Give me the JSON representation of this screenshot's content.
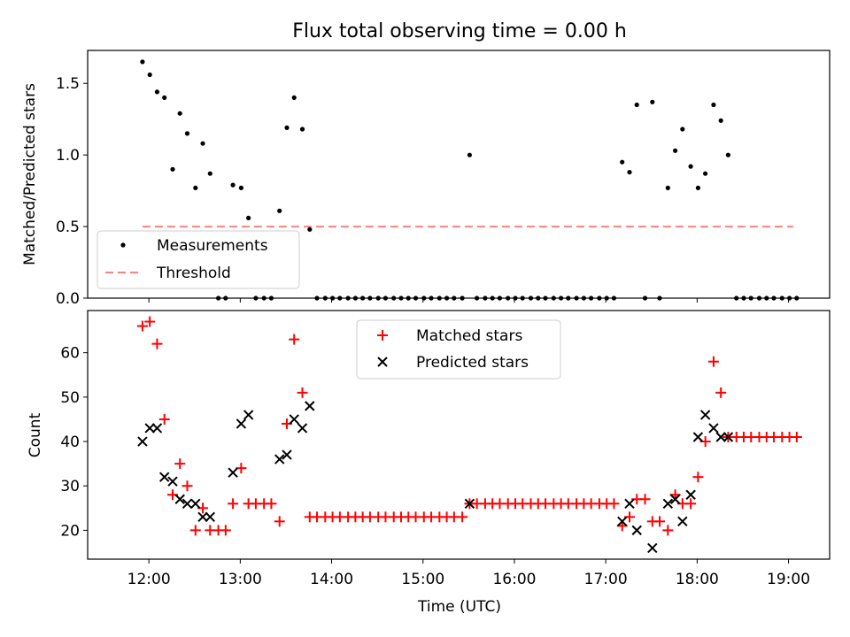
{
  "figure_title": "Flux total observing time = 0.00 h",
  "x_tick_labels": [
    "12:00",
    "13:00",
    "14:00",
    "15:00",
    "16:00",
    "17:00",
    "18:00",
    "19:00"
  ],
  "colors": {
    "measurements": "#000000",
    "threshold": "#ff8080",
    "matched": "#ff0000",
    "predicted": "#000000"
  },
  "chart_data": [
    {
      "type": "scatter",
      "title": "Flux total observing time = 0.00 h",
      "xlabel": "",
      "ylabel": "Matched/Predicted stars",
      "x_unit": "hours UTC",
      "xlim": [
        11.33,
        19.45
      ],
      "ylim": [
        0,
        1.73
      ],
      "yticks": [
        0.0,
        0.5,
        1.0,
        1.5
      ],
      "ytick_labels": [
        "0.0",
        "0.5",
        "1.0",
        "1.5"
      ],
      "legend_position": "lower-left",
      "legend": [
        {
          "label": "Measurements",
          "marker": "dot",
          "color": "#000000"
        },
        {
          "label": "Threshold",
          "marker": "dashed-line",
          "color": "#ff8080"
        }
      ],
      "threshold": {
        "value": 0.5,
        "x_range": [
          11.93,
          19.05
        ]
      },
      "series": [
        {
          "name": "Measurements",
          "x": [
            11.93,
            12.01,
            12.09,
            12.17,
            12.26,
            12.34,
            12.42,
            12.51,
            12.59,
            12.67,
            12.76,
            12.84,
            12.92,
            13.01,
            13.09,
            13.17,
            13.26,
            13.34,
            13.43,
            13.51,
            13.59,
            13.68,
            13.76,
            13.84,
            13.93,
            14.01,
            14.09,
            14.18,
            14.26,
            14.34,
            14.42,
            14.51,
            14.59,
            14.68,
            14.76,
            14.84,
            14.92,
            15.01,
            15.09,
            15.18,
            15.26,
            15.34,
            15.43,
            15.51,
            15.59,
            15.68,
            15.76,
            15.84,
            15.93,
            16.01,
            16.09,
            16.18,
            16.26,
            16.34,
            16.43,
            16.51,
            16.59,
            16.68,
            16.76,
            16.84,
            16.93,
            17.01,
            17.09,
            17.18,
            17.26,
            17.34,
            17.43,
            17.51,
            17.59,
            17.68,
            17.76,
            17.84,
            17.93,
            18.01,
            18.09,
            18.18,
            18.26,
            18.34,
            18.43,
            18.51,
            18.59,
            18.68,
            18.76,
            18.84,
            18.93,
            19.01,
            19.09
          ],
          "y": [
            1.65,
            1.56,
            1.44,
            1.4,
            0.9,
            1.29,
            1.15,
            0.77,
            1.08,
            0.87,
            0.0,
            0.0,
            0.79,
            0.77,
            0.56,
            0.0,
            0.0,
            0.0,
            0.61,
            1.19,
            1.4,
            1.18,
            0.48,
            0.0,
            0.0,
            0.0,
            0.0,
            0.0,
            0.0,
            0.0,
            0.0,
            0.0,
            0.0,
            0.0,
            0.0,
            0.0,
            0.0,
            0.0,
            0.0,
            0.0,
            0.0,
            0.0,
            0.0,
            1.0,
            0.0,
            0.0,
            0.0,
            0.0,
            0.0,
            0.0,
            0.0,
            0.0,
            0.0,
            0.0,
            0.0,
            0.0,
            0.0,
            0.0,
            0.0,
            0.0,
            0.0,
            0.0,
            0.0,
            0.95,
            0.88,
            1.35,
            0.0,
            1.37,
            0.0,
            0.77,
            1.03,
            1.18,
            0.92,
            0.77,
            0.87,
            1.35,
            1.24,
            1.0,
            0.0,
            0.0,
            0.0,
            0.0,
            0.0,
            0.0,
            0.0,
            0.0,
            0.0
          ]
        }
      ]
    },
    {
      "type": "scatter",
      "title": "",
      "xlabel": "Time (UTC)",
      "ylabel": "Count",
      "x_unit": "hours UTC",
      "xlim": [
        11.33,
        19.45
      ],
      "ylim": [
        13.5,
        69.5
      ],
      "yticks": [
        20,
        30,
        40,
        50,
        60
      ],
      "ytick_labels": [
        "20",
        "30",
        "40",
        "50",
        "60"
      ],
      "xticks": [
        12,
        13,
        14,
        15,
        16,
        17,
        18,
        19
      ],
      "legend_position": "top-center",
      "legend": [
        {
          "label": "Matched stars",
          "marker": "plus",
          "color": "#ff0000"
        },
        {
          "label": "Predicted stars",
          "marker": "x",
          "color": "#000000"
        }
      ],
      "series": [
        {
          "name": "Matched stars",
          "x": [
            11.93,
            12.01,
            12.09,
            12.17,
            12.26,
            12.34,
            12.42,
            12.51,
            12.59,
            12.67,
            12.76,
            12.84,
            12.92,
            13.01,
            13.09,
            13.17,
            13.26,
            13.34,
            13.43,
            13.51,
            13.59,
            13.68,
            13.76,
            13.84,
            13.93,
            14.01,
            14.09,
            14.18,
            14.26,
            14.34,
            14.42,
            14.51,
            14.59,
            14.68,
            14.76,
            14.84,
            14.92,
            15.01,
            15.09,
            15.18,
            15.26,
            15.34,
            15.43,
            15.51,
            15.59,
            15.68,
            15.76,
            15.84,
            15.93,
            16.01,
            16.09,
            16.18,
            16.26,
            16.34,
            16.43,
            16.51,
            16.59,
            16.68,
            16.76,
            16.84,
            16.93,
            17.01,
            17.09,
            17.18,
            17.26,
            17.34,
            17.43,
            17.51,
            17.59,
            17.68,
            17.76,
            17.84,
            17.93,
            18.01,
            18.09,
            18.18,
            18.26,
            18.34,
            18.43,
            18.51,
            18.59,
            18.68,
            18.76,
            18.84,
            18.93,
            19.01,
            19.09
          ],
          "y": [
            66,
            67,
            62,
            45,
            28,
            35,
            30,
            20,
            25,
            20,
            20,
            20,
            26,
            34,
            26,
            26,
            26,
            26,
            22,
            44,
            63,
            51,
            23,
            23,
            23,
            23,
            23,
            23,
            23,
            23,
            23,
            23,
            23,
            23,
            23,
            23,
            23,
            23,
            23,
            23,
            23,
            23,
            23,
            26,
            26,
            26,
            26,
            26,
            26,
            26,
            26,
            26,
            26,
            26,
            26,
            26,
            26,
            26,
            26,
            26,
            26,
            26,
            26,
            21,
            23,
            27,
            27,
            22,
            22,
            20,
            28,
            26,
            26,
            32,
            40,
            58,
            51,
            41,
            41,
            41,
            41,
            41,
            41,
            41,
            41,
            41,
            41
          ]
        },
        {
          "name": "Predicted stars",
          "x": [
            11.93,
            12.01,
            12.09,
            12.17,
            12.26,
            12.34,
            12.42,
            12.51,
            12.59,
            12.67,
            12.92,
            13.01,
            13.09,
            13.43,
            13.51,
            13.59,
            13.68,
            13.76,
            15.51,
            17.18,
            17.26,
            17.34,
            17.51,
            17.68,
            17.76,
            17.84,
            17.93,
            18.01,
            18.09,
            18.18,
            18.26,
            18.34
          ],
          "y": [
            40,
            43,
            43,
            32,
            31,
            27,
            26,
            26,
            23,
            23,
            33,
            44,
            46,
            36,
            37,
            45,
            43,
            48,
            26,
            22,
            26,
            20,
            16,
            26,
            27,
            22,
            28,
            41,
            46,
            43,
            41,
            41
          ]
        }
      ]
    }
  ]
}
